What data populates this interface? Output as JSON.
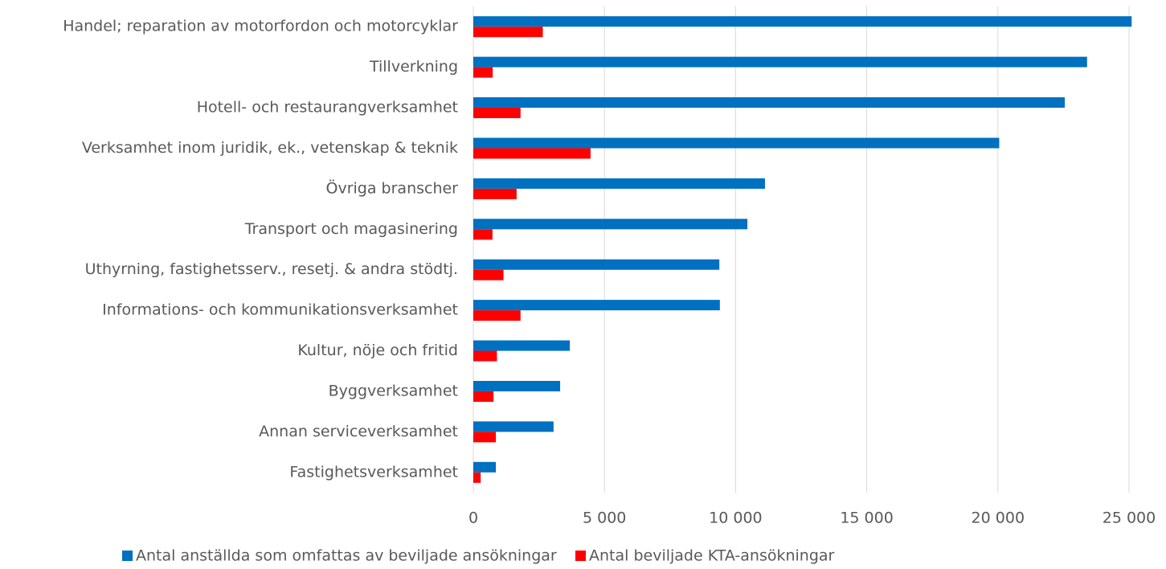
{
  "chart_data": {
    "type": "barh",
    "categories": [
      "Handel; reparation av motorfordon och motorcyklar",
      "Tillverkning",
      "Hotell- och restaurangverksamhet",
      "Verksamhet inom juridik, ek., vetenskap & teknik",
      "Övriga branscher",
      "Transport och magasinering",
      "Uthyrning, fastighetsserv., resetj. & andra stödtj.",
      "Informations- och kommunikationsverksamhet",
      "Kultur, nöje och fritid",
      "Byggverksamhet",
      "Annan serviceverksamhet",
      "Fastighetsverksamhet"
    ],
    "series": [
      {
        "name": "Antal anställda som omfattas av beviljade ansökningar",
        "color": "#0070c0",
        "values": [
          25100,
          23400,
          22550,
          20050,
          11120,
          10450,
          9380,
          9400,
          3680,
          3310,
          3060,
          860
        ]
      },
      {
        "name": "Antal beviljade KTA-ansökningar",
        "color": "#ff0000",
        "values": [
          2650,
          740,
          1800,
          4470,
          1650,
          730,
          1150,
          1800,
          900,
          770,
          860,
          280
        ]
      }
    ],
    "xlim": [
      0,
      25000
    ],
    "xticks": [
      0,
      {
        "value": 5000,
        "label": "5 000"
      },
      {
        "value": 10000,
        "label": "10 000"
      },
      {
        "value": 15000,
        "label": "15 000"
      },
      {
        "value": 20000,
        "label": "20 000"
      },
      {
        "value": 25000,
        "label": "25 000"
      }
    ],
    "grid": true,
    "legend": "bottom"
  }
}
